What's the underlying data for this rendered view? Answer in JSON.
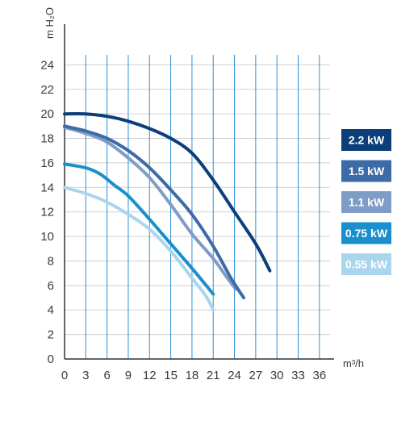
{
  "chart_data": {
    "type": "line",
    "title": "",
    "xlabel": "m³/h",
    "ylabel": "m H₂O",
    "xlim": [
      0,
      37.5
    ],
    "ylim": [
      0,
      26
    ],
    "x_ticks": [
      0,
      3,
      6,
      9,
      12,
      15,
      18,
      21,
      24,
      27,
      30,
      33,
      36
    ],
    "y_ticks": [
      0,
      2,
      4,
      6,
      8,
      10,
      12,
      14,
      16,
      18,
      20,
      22,
      24
    ],
    "grid": true,
    "legend_position": "right",
    "series": [
      {
        "name": "2.2 kW",
        "color": "#0c3f7a",
        "points": [
          [
            0,
            20
          ],
          [
            3,
            20
          ],
          [
            6,
            19.8
          ],
          [
            9,
            19.4
          ],
          [
            12,
            18.8
          ],
          [
            15,
            18
          ],
          [
            18,
            16.8
          ],
          [
            21,
            14.6
          ],
          [
            24,
            12
          ],
          [
            27,
            9.4
          ],
          [
            29,
            7.2
          ]
        ]
      },
      {
        "name": "1.5 kW",
        "color": "#3d6ba8",
        "points": [
          [
            0,
            19
          ],
          [
            3,
            18.6
          ],
          [
            6,
            18
          ],
          [
            9,
            17
          ],
          [
            12,
            15.6
          ],
          [
            15,
            13.8
          ],
          [
            18,
            11.8
          ],
          [
            21,
            9.2
          ],
          [
            23.5,
            6.6
          ],
          [
            25.3,
            5
          ]
        ]
      },
      {
        "name": "1.1 kW",
        "color": "#7f9cc6",
        "points": [
          [
            0,
            18.9
          ],
          [
            3,
            18.4
          ],
          [
            6,
            17.7
          ],
          [
            9,
            16.4
          ],
          [
            12,
            14.8
          ],
          [
            15,
            12.6
          ],
          [
            18,
            10.2
          ],
          [
            21,
            8.2
          ],
          [
            23,
            6.6
          ],
          [
            24.2,
            5.7
          ]
        ]
      },
      {
        "name": "0.75 kW",
        "color": "#1a8fcd",
        "points": [
          [
            0,
            15.9
          ],
          [
            3,
            15.6
          ],
          [
            5,
            15.1
          ],
          [
            7,
            14.2
          ],
          [
            9,
            13.3
          ],
          [
            12,
            11.4
          ],
          [
            15,
            9.4
          ],
          [
            18,
            7.4
          ],
          [
            21,
            5.3
          ]
        ]
      },
      {
        "name": "0.55 kW",
        "color": "#a9d6ed",
        "points": [
          [
            0,
            14
          ],
          [
            3,
            13.5
          ],
          [
            6,
            12.8
          ],
          [
            9,
            11.8
          ],
          [
            12,
            10.6
          ],
          [
            15,
            8.8
          ],
          [
            18,
            6.6
          ],
          [
            20,
            5.1
          ],
          [
            21,
            4
          ]
        ]
      }
    ]
  }
}
